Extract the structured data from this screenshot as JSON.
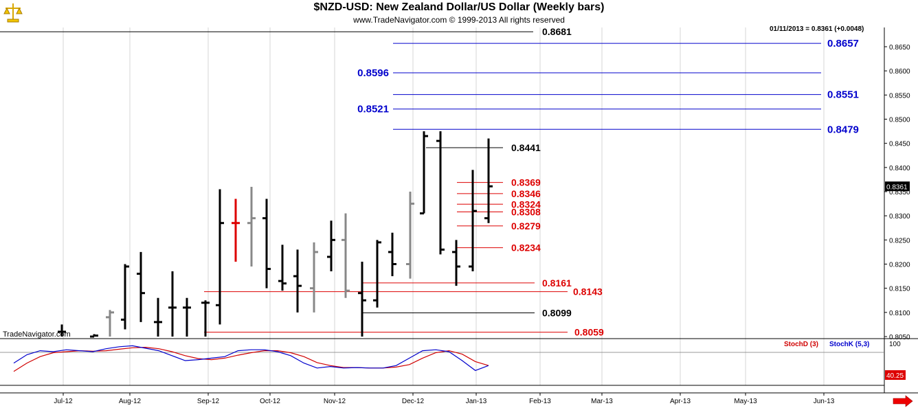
{
  "title": "$NZD-USD:  New Zealand Dollar/US Dollar  (Weekly bars)",
  "subtitle": "www.TradeNavigator.com © 1999-2013 All rights reserved",
  "readout": "01/11/2013 = 0.8361 (+0.0048)",
  "watermark": "TradeNavigator.com",
  "last_price_label": "0.8361",
  "stoch": {
    "legend_d": "StochD (3)",
    "legend_k": "StochK (5,3)",
    "upper_label": "100",
    "current_label": "40.25",
    "colors": {
      "d": "#d00000",
      "k": "#0000cc"
    }
  },
  "colors": {
    "blue": "#0000cc",
    "red": "#dd0000",
    "black": "#000000",
    "gray": "#888888"
  },
  "chart_data": {
    "type": "ohlc",
    "y_axis": {
      "ticks": [
        0.805,
        0.81,
        0.815,
        0.82,
        0.825,
        0.83,
        0.835,
        0.84,
        0.845,
        0.85,
        0.855,
        0.86,
        0.865
      ],
      "tick_labels": [
        "0.8050",
        "0.8100",
        "0.8150",
        "0.8200",
        "0.8250",
        "0.8300",
        "0.8350",
        "0.8400",
        "0.8450",
        "0.8500",
        "0.8550",
        "0.8600",
        "0.8650"
      ]
    },
    "x_axis": {
      "labels": [
        "Jul-12",
        "Aug-12",
        "Sep-12",
        "Oct-12",
        "Nov-12",
        "Dec-12",
        "Jan-13",
        "Feb-13",
        "Mar-13",
        "Apr-13",
        "May-13",
        "Jun-13"
      ]
    },
    "bars": [
      {
        "o": 0.806,
        "h": 0.8075,
        "l": 0.805,
        "c": 0.806,
        "color": "black"
      },
      {
        "o": 0.805,
        "h": 0.8055,
        "l": 0.805,
        "c": 0.8052,
        "color": "black"
      },
      {
        "o": 0.809,
        "h": 0.8105,
        "l": 0.805,
        "c": 0.81,
        "color": "gray"
      },
      {
        "o": 0.8085,
        "h": 0.82,
        "l": 0.8065,
        "c": 0.8195,
        "color": "black"
      },
      {
        "o": 0.818,
        "h": 0.8225,
        "l": 0.808,
        "c": 0.814,
        "color": "black"
      },
      {
        "o": 0.808,
        "h": 0.813,
        "l": 0.805,
        "c": 0.808,
        "color": "black"
      },
      {
        "o": 0.811,
        "h": 0.8185,
        "l": 0.805,
        "c": 0.811,
        "color": "black"
      },
      {
        "o": 0.811,
        "h": 0.813,
        "l": 0.805,
        "c": 0.811,
        "color": "black"
      },
      {
        "o": 0.812,
        "h": 0.8125,
        "l": 0.805,
        "c": 0.812,
        "color": "black"
      },
      {
        "o": 0.8115,
        "h": 0.8355,
        "l": 0.8075,
        "c": 0.8285,
        "color": "black"
      },
      {
        "o": 0.8285,
        "h": 0.8335,
        "l": 0.8205,
        "c": 0.8285,
        "color": "red"
      },
      {
        "o": 0.8285,
        "h": 0.836,
        "l": 0.8195,
        "c": 0.8295,
        "color": "gray"
      },
      {
        "o": 0.8295,
        "h": 0.8335,
        "l": 0.815,
        "c": 0.819,
        "color": "black"
      },
      {
        "o": 0.8165,
        "h": 0.824,
        "l": 0.8145,
        "c": 0.816,
        "color": "black"
      },
      {
        "o": 0.8175,
        "h": 0.823,
        "l": 0.81,
        "c": 0.8155,
        "color": "black"
      },
      {
        "o": 0.815,
        "h": 0.8245,
        "l": 0.81,
        "c": 0.8225,
        "color": "gray"
      },
      {
        "o": 0.8215,
        "h": 0.829,
        "l": 0.8185,
        "c": 0.825,
        "color": "black"
      },
      {
        "o": 0.825,
        "h": 0.8305,
        "l": 0.813,
        "c": 0.8145,
        "color": "gray"
      },
      {
        "o": 0.814,
        "h": 0.8205,
        "l": 0.805,
        "c": 0.8125,
        "color": "black"
      },
      {
        "o": 0.8125,
        "h": 0.825,
        "l": 0.811,
        "c": 0.8245,
        "color": "black"
      },
      {
        "o": 0.8225,
        "h": 0.8265,
        "l": 0.8175,
        "c": 0.82,
        "color": "black"
      },
      {
        "o": 0.82,
        "h": 0.835,
        "l": 0.817,
        "c": 0.8325,
        "color": "gray"
      },
      {
        "o": 0.8305,
        "h": 0.8475,
        "l": 0.8305,
        "c": 0.8465,
        "color": "black"
      },
      {
        "o": 0.8455,
        "h": 0.8475,
        "l": 0.822,
        "c": 0.823,
        "color": "black"
      },
      {
        "o": 0.8225,
        "h": 0.825,
        "l": 0.8155,
        "c": 0.8195,
        "color": "black"
      },
      {
        "o": 0.8195,
        "h": 0.8395,
        "l": 0.8185,
        "c": 0.831,
        "color": "black"
      },
      {
        "o": 0.8295,
        "h": 0.846,
        "l": 0.8285,
        "c": 0.8361,
        "color": "black"
      }
    ],
    "levels": [
      {
        "value": 0.8681,
        "label": "0.8681",
        "color": "black"
      },
      {
        "value": 0.8657,
        "label": "0.8657",
        "color": "blue"
      },
      {
        "value": 0.8596,
        "label": "0.8596",
        "color": "blue"
      },
      {
        "value": 0.8551,
        "label": "0.8551",
        "color": "blue"
      },
      {
        "value": 0.8521,
        "label": "0.8521",
        "color": "blue"
      },
      {
        "value": 0.8479,
        "label": "0.8479",
        "color": "blue"
      },
      {
        "value": 0.8441,
        "label": "0.8441",
        "color": "black"
      },
      {
        "value": 0.8369,
        "label": "0.8369",
        "color": "red"
      },
      {
        "value": 0.8346,
        "label": "0.8346",
        "color": "red"
      },
      {
        "value": 0.8324,
        "label": "0.8324",
        "color": "red"
      },
      {
        "value": 0.8308,
        "label": "0.8308",
        "color": "red"
      },
      {
        "value": 0.8279,
        "label": "0.8279",
        "color": "red"
      },
      {
        "value": 0.8234,
        "label": "0.8234",
        "color": "red"
      },
      {
        "value": 0.8161,
        "label": "0.8161",
        "color": "red"
      },
      {
        "value": 0.8143,
        "label": "0.8143",
        "color": "red"
      },
      {
        "value": 0.8099,
        "label": "0.8099",
        "color": "black"
      },
      {
        "value": 0.8059,
        "label": "0.8059",
        "color": "red"
      }
    ],
    "stoch_k": [
      45,
      62,
      70,
      68,
      72,
      70,
      68,
      74,
      78,
      80,
      75,
      70,
      60,
      50,
      52,
      55,
      58,
      70,
      72,
      72,
      68,
      60,
      45,
      35,
      38,
      35,
      36,
      35,
      35,
      40,
      55,
      70,
      72,
      68,
      50,
      30,
      40
    ],
    "stoch_d": [
      28,
      45,
      58,
      66,
      68,
      70,
      69,
      70,
      73,
      76,
      77,
      74,
      68,
      60,
      54,
      52,
      55,
      61,
      66,
      70,
      70,
      66,
      58,
      46,
      40,
      36,
      36,
      35,
      35,
      37,
      42,
      55,
      66,
      70,
      63,
      48,
      40
    ],
    "last_price": 0.8361
  }
}
